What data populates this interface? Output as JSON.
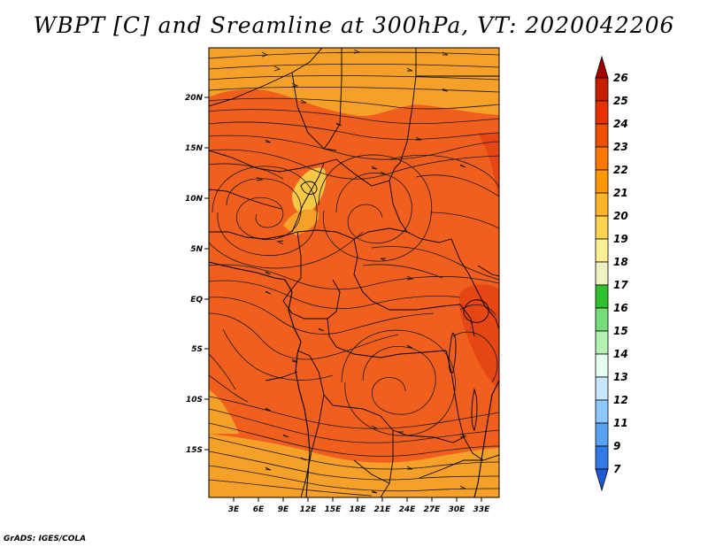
{
  "title": "WBPT [C] and Sreamline at 300hPa, VT: 2020042206",
  "credit": "GrADS: IGES/COLA",
  "map": {
    "lat_labels": [
      "20N",
      "15N",
      "10N",
      "5N",
      "EQ",
      "5S",
      "10S",
      "15S"
    ],
    "lon_labels": [
      "3E",
      "6E",
      "9E",
      "12E",
      "15E",
      "18E",
      "21E",
      "24E",
      "27E",
      "30E",
      "33E"
    ],
    "field": "Wet-bulb potential temperature",
    "overlay": "Streamlines"
  },
  "colorbar": {
    "levels": [
      "26",
      "25",
      "24",
      "23",
      "22",
      "21",
      "20",
      "19",
      "18",
      "17",
      "16",
      "15",
      "14",
      "13",
      "12",
      "11",
      "9",
      "7"
    ],
    "colors": [
      "#a50000",
      "#c81e00",
      "#e63200",
      "#f05000",
      "#ff7800",
      "#ff9600",
      "#ffb428",
      "#ffd250",
      "#fff096",
      "#f0f0c0",
      "#30c030",
      "#78dc78",
      "#b4f0b4",
      "#e6fff0",
      "#c8e6ff",
      "#8cc8ff",
      "#5aa0f0",
      "#3278e6",
      "#1e5ad2"
    ]
  },
  "palette": {
    "dominant": "#f05f1e",
    "warm": "#e64614",
    "light": "#f5a028",
    "pale": "#f5c846"
  }
}
